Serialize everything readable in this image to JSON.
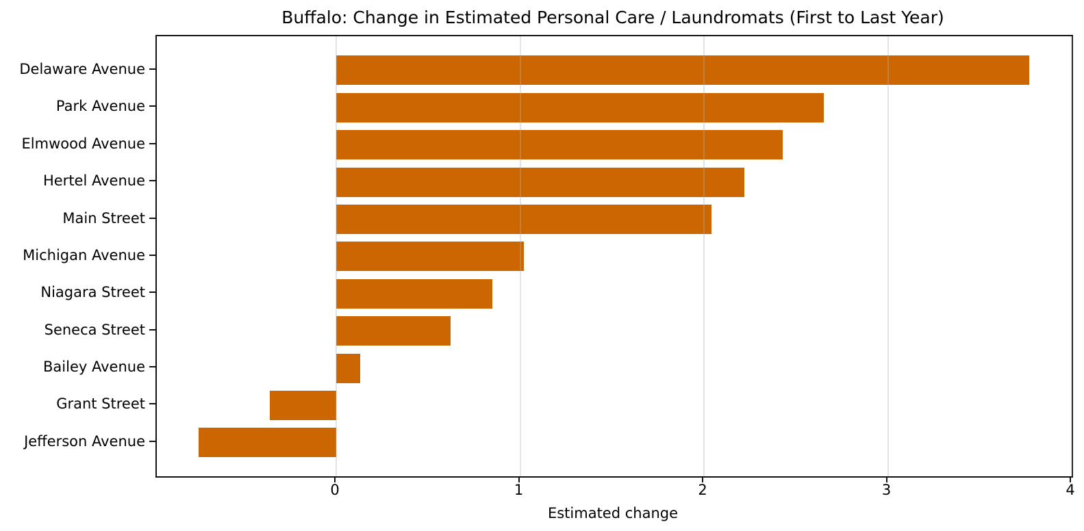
{
  "chart_data": {
    "type": "bar",
    "orientation": "horizontal",
    "title": "Buffalo: Change in Estimated Personal Care / Laundromats (First to Last Year)",
    "xlabel": "Estimated change",
    "ylabel": "",
    "categories": [
      "Delaware Avenue",
      "Park Avenue",
      "Elmwood Avenue",
      "Hertel Avenue",
      "Main Street",
      "Michigan Avenue",
      "Niagara Street",
      "Seneca Street",
      "Bailey Avenue",
      "Grant Street",
      "Jefferson Avenue"
    ],
    "values": [
      3.77,
      2.65,
      2.43,
      2.22,
      2.04,
      1.02,
      0.85,
      0.62,
      0.13,
      -0.36,
      -0.75
    ],
    "xlim": [
      -0.976,
      4.0
    ],
    "xticks": [
      0,
      1,
      2,
      3,
      4
    ],
    "xtick_labels": [
      "0",
      "1",
      "2",
      "3",
      "4"
    ],
    "bar_color": "#cc6600",
    "grid": true,
    "grid_axis": "x",
    "grid_above_bars": true,
    "background_color": "#ffffff",
    "spine_color": "#111111",
    "legend": "none"
  }
}
